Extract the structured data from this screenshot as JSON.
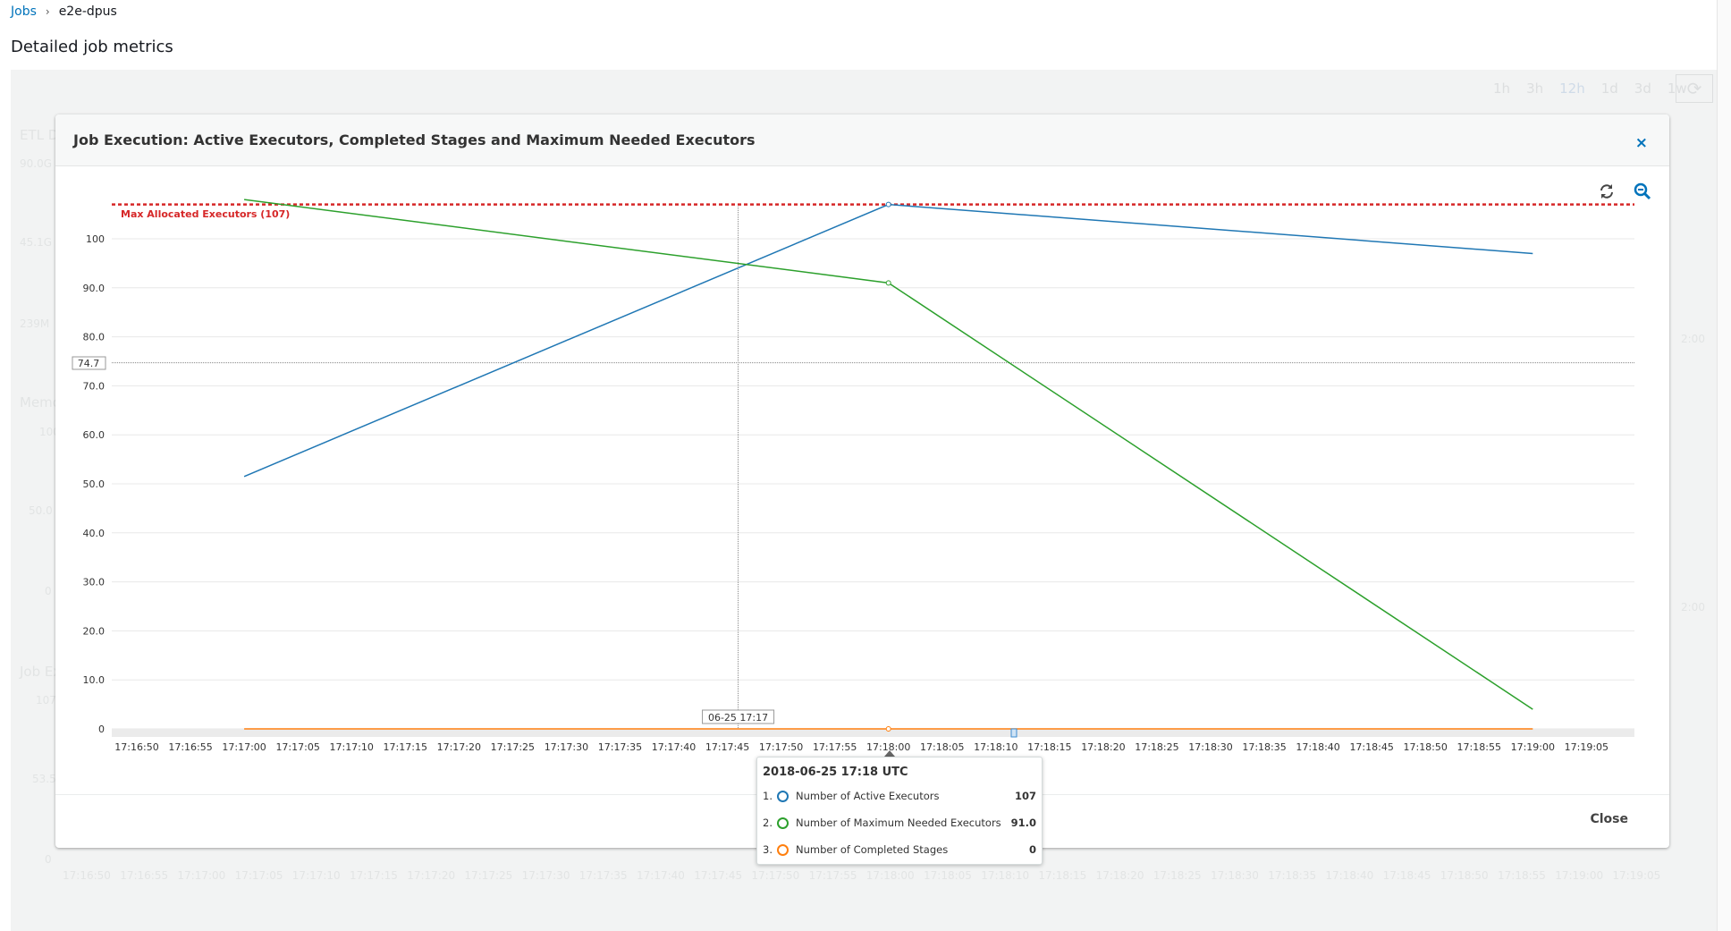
{
  "breadcrumb": {
    "parent": "Jobs",
    "separator": "›",
    "current": "e2e-dpus"
  },
  "page_title": "Detailed job metrics",
  "background": {
    "time_ranges": [
      "1h",
      "3h",
      "12h",
      "1d",
      "3d",
      "1w"
    ],
    "selected_range": "12h",
    "left_labels": [
      "ETL Da",
      "90.0G",
      "45.1G",
      "239M",
      "Memo",
      "100",
      "50.0",
      "0",
      "Job Ex",
      "107",
      "53.5",
      "0"
    ],
    "right_labels": [
      "2:00",
      "2:00"
    ],
    "x_ticks": [
      "17:16:50",
      "17:16:55",
      "17:17:00",
      "17:17:05",
      "17:17:10",
      "17:17:15",
      "17:17:20",
      "17:17:25",
      "17:17:30",
      "17:17:35",
      "17:17:40",
      "17:17:45",
      "17:17:50",
      "17:17:55",
      "17:18:00",
      "17:18:05",
      "17:18:10",
      "17:18:15",
      "17:18:20",
      "17:18:25",
      "17:18:30",
      "17:18:35",
      "17:18:40",
      "17:18:45",
      "17:18:50",
      "17:18:55",
      "17:19:00",
      "17:19:05"
    ]
  },
  "modal": {
    "title": "Job Execution: Active Executors, Completed Stages and Maximum Needed Executors",
    "close_icon": "×",
    "close_label": "Close"
  },
  "chart_data": {
    "type": "line",
    "ylim": [
      0,
      107
    ],
    "y_ticks": [
      "0",
      "10.0",
      "20.0",
      "30.0",
      "40.0",
      "50.0",
      "60.0",
      "70.0",
      "80.0",
      "90.0",
      "100"
    ],
    "x_ticks": [
      "17:16:50",
      "17:16:55",
      "17:17:00",
      "17:17:05",
      "17:17:10",
      "17:17:15",
      "17:17:20",
      "17:17:25",
      "17:17:30",
      "17:17:35",
      "17:17:40",
      "17:17:45",
      "17:17:50",
      "17:17:55",
      "17:18:00",
      "17:18:05",
      "17:18:10",
      "17:18:15",
      "17:18:20",
      "17:18:25",
      "17:18:30",
      "17:18:35",
      "17:18:40",
      "17:18:45",
      "17:18:50",
      "17:18:55",
      "17:19:00",
      "17:19:05"
    ],
    "x": [
      "17:17:00",
      "17:18:00",
      "17:19:00"
    ],
    "series": [
      {
        "name": "Number of Active Executors",
        "color": "#1f77b4",
        "values": [
          51.5,
          107,
          97
        ]
      },
      {
        "name": "Number of Maximum Needed Executors",
        "color": "#2ca02c",
        "values": [
          108,
          91.0,
          4
        ]
      },
      {
        "name": "Number of Completed Stages",
        "color": "#ff7f0e",
        "values": [
          0,
          0,
          0
        ]
      }
    ],
    "threshold": {
      "label": "Max Allocated Executors (107)",
      "value": 107,
      "color": "#d62728"
    },
    "crosshair": {
      "x_label": "06-25 17:17",
      "y_label": "74.7",
      "y_value": 74.7
    },
    "grid": true,
    "tooltip": {
      "title": "2018-06-25 17:18 UTC",
      "rows": [
        {
          "index": "1.",
          "label": "Number of Active Executors",
          "value": "107",
          "color": "#1f77b4"
        },
        {
          "index": "2.",
          "label": "Number of Maximum Needed Executors",
          "value": "91.0",
          "color": "#2ca02c"
        },
        {
          "index": "3.",
          "label": "Number of Completed Stages",
          "value": "0",
          "color": "#ff7f0e"
        }
      ]
    },
    "icons": {
      "refresh": "refresh-icon",
      "zoom_out": "zoom-out-icon"
    }
  }
}
